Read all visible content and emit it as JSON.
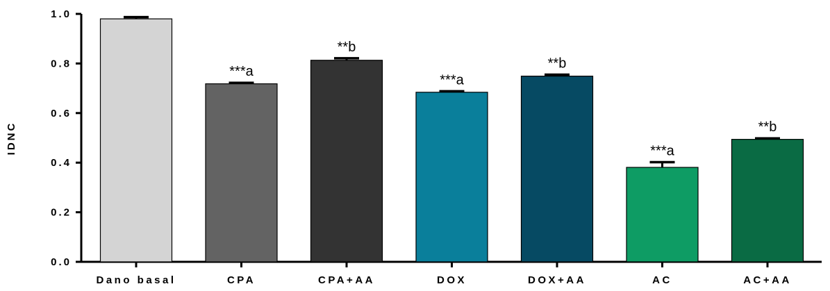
{
  "chart_data": {
    "type": "bar",
    "title": "",
    "xlabel": "",
    "ylabel": "IDNC",
    "ylim": [
      0,
      1.0
    ],
    "yticks": [
      "0.0",
      "0.2",
      "0.4",
      "0.6",
      "0.8",
      "1.0"
    ],
    "grid": false,
    "categories": [
      "Dano basal",
      "CPA",
      "CPA+AA",
      "DOX",
      "DOX+AA",
      "AC",
      "AC+AA"
    ],
    "values": [
      0.98,
      0.718,
      0.813,
      0.684,
      0.749,
      0.381,
      0.494
    ],
    "errors": [
      0.007,
      0.004,
      0.008,
      0.004,
      0.006,
      0.021,
      0.004
    ],
    "annotations": [
      "",
      "***a",
      "**b",
      "***a",
      "**b",
      "***a",
      "**b"
    ],
    "colors": [
      "#d4d4d4",
      "#636363",
      "#333333",
      "#0a7f9b",
      "#064a63",
      "#0e9c64",
      "#0a6b44"
    ]
  }
}
